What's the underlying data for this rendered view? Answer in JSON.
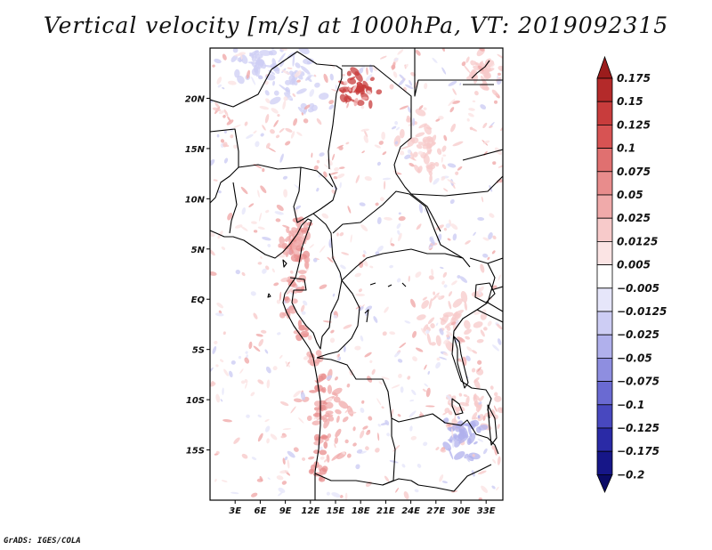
{
  "title": "Vertical velocity [m/s] at 1000hPa, VT: 2019092315",
  "credit": "GrADS: IGES/COLA",
  "chart_data": {
    "type": "heatmap",
    "title": "Vertical velocity [m/s] at 1000hPa, VT: 2019092315",
    "variable": "Vertical velocity",
    "units": "m/s",
    "level": "1000hPa",
    "valid_time": "2019092315",
    "x_range": [
      0,
      35
    ],
    "y_range": [
      -20,
      25
    ],
    "x_ticks": [
      {
        "value": 3,
        "label": "3E"
      },
      {
        "value": 6,
        "label": "6E"
      },
      {
        "value": 9,
        "label": "9E"
      },
      {
        "value": 12,
        "label": "12E"
      },
      {
        "value": 15,
        "label": "15E"
      },
      {
        "value": 18,
        "label": "18E"
      },
      {
        "value": 21,
        "label": "21E"
      },
      {
        "value": 24,
        "label": "24E"
      },
      {
        "value": 27,
        "label": "27E"
      },
      {
        "value": 30,
        "label": "30E"
      },
      {
        "value": 33,
        "label": "33E"
      }
    ],
    "y_ticks": [
      {
        "value": 20,
        "label": "20N"
      },
      {
        "value": 15,
        "label": "15N"
      },
      {
        "value": 10,
        "label": "10N"
      },
      {
        "value": 5,
        "label": "5N"
      },
      {
        "value": 0,
        "label": "EQ"
      },
      {
        "value": -5,
        "label": "5S"
      },
      {
        "value": -10,
        "label": "10S"
      },
      {
        "value": -15,
        "label": "15S"
      }
    ],
    "colorbar": {
      "labels": [
        "0.175",
        "0.15",
        "0.125",
        "0.1",
        "0.075",
        "0.05",
        "0.025",
        "0.0125",
        "0.005",
        "−0.005",
        "−0.0125",
        "−0.025",
        "−0.05",
        "−0.075",
        "−0.1",
        "−0.125",
        "−0.175",
        "−0.2"
      ],
      "colors": [
        "#9b1c1c",
        "#b42a2a",
        "#c83c3c",
        "#d75353",
        "#e07070",
        "#e88c8c",
        "#f0aaaa",
        "#f7caca",
        "#fbe4e4",
        "#ffffff",
        "#e6e6fa",
        "#cdcdf4",
        "#b0b0ec",
        "#8e8ee0",
        "#6a6ad2",
        "#4848bf",
        "#2a2aa6",
        "#161688",
        "#0b0b66"
      ]
    }
  }
}
